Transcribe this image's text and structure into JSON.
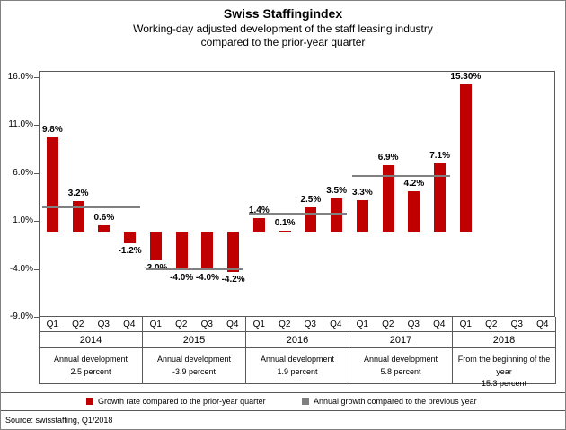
{
  "header": {
    "title": "Swiss Staffingindex",
    "subtitle_line1": "Working-day adjusted development of the staff leasing industry",
    "subtitle_line2": "compared to the prior-year quarter"
  },
  "chart_data": {
    "type": "bar",
    "title": "Swiss Staffingindex",
    "xlabel": "",
    "ylabel": "",
    "ylim": [
      -9,
      16
    ],
    "grid": false,
    "legend_position": "bottom",
    "yticks": [
      "16.0%",
      "11.0%",
      "6.0%",
      "1.0%",
      "-4.0%",
      "-9.0%"
    ],
    "ytick_values": [
      16,
      11,
      6,
      1,
      -4,
      -9
    ],
    "quarters": [
      "Q1",
      "Q2",
      "Q3",
      "Q4"
    ],
    "groups": [
      {
        "year": "2014",
        "values": [
          9.8,
          3.2,
          0.6,
          -1.2
        ],
        "bar_labels": [
          "9.8%",
          "3.2%",
          "0.6%",
          "-1.2%"
        ],
        "annual_value": 2.5,
        "annual_text_line1": "Annual development",
        "annual_text_line2": "2.5 percent"
      },
      {
        "year": "2015",
        "values": [
          -3.0,
          -4.0,
          -4.0,
          -4.2
        ],
        "bar_labels": [
          "-3.0%",
          "-4.0%",
          "-4.0%",
          "-4.2%"
        ],
        "annual_value": -3.9,
        "annual_text_line1": "Annual development",
        "annual_text_line2": "-3.9 percent"
      },
      {
        "year": "2016",
        "values": [
          1.4,
          0.1,
          2.5,
          3.5
        ],
        "bar_labels": [
          "1.4%",
          "0.1%",
          "2.5%",
          "3.5%"
        ],
        "annual_value": 1.9,
        "annual_text_line1": "Annual development",
        "annual_text_line2": "1.9 percent"
      },
      {
        "year": "2017",
        "values": [
          3.3,
          6.9,
          4.2,
          7.1
        ],
        "bar_labels": [
          "3.3%",
          "6.9%",
          "4.2%",
          "7.1%"
        ],
        "annual_value": 5.8,
        "annual_text_line1": "Annual development",
        "annual_text_line2": "5.8 percent"
      },
      {
        "year": "2018",
        "values": [
          15.3,
          null,
          null,
          null
        ],
        "bar_labels": [
          "15.30%",
          "",
          "",
          ""
        ],
        "annual_value": null,
        "annual_text_line1": "From the beginning of the year",
        "annual_text_line2": "15.3 percent"
      }
    ]
  },
  "legend": {
    "items": [
      {
        "label": "Growth rate compared to the prior-year quarter",
        "color": "#C00000"
      },
      {
        "label": "Annual growth compared to the previous year",
        "color": "#808080"
      }
    ]
  },
  "source": "Source: swisstaffing, Q1/2018",
  "colors": {
    "bar": "#C00000",
    "annual_line": "#808080"
  }
}
